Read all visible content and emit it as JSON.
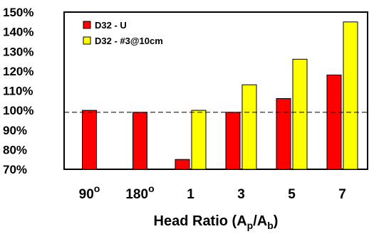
{
  "chart_data": {
    "type": "bar",
    "categories": [
      "90",
      "180",
      "1",
      "3",
      "5",
      "7"
    ],
    "category_superscripts": [
      "o",
      "o",
      "",
      "",
      "",
      ""
    ],
    "series": [
      {
        "name": "D32 - U",
        "color": "#ff0000",
        "values": [
          100,
          99,
          75,
          99,
          106,
          118
        ]
      },
      {
        "name": "D32 - #3@10cm",
        "color": "#ffff00",
        "values": [
          null,
          null,
          100,
          113,
          126,
          145
        ]
      }
    ],
    "reference_line": 99,
    "ylim": [
      70,
      150
    ],
    "yticks": [
      "150%",
      "140%",
      "130%",
      "120%",
      "110%",
      "100%",
      "90%",
      "80%",
      "70%"
    ],
    "xlabel": {
      "prefix": "Head Ratio (A",
      "sub1": "p",
      "mid": "/A",
      "sub2": "b",
      "suffix": ")"
    },
    "legend_position": "top-left",
    "grid": false
  }
}
